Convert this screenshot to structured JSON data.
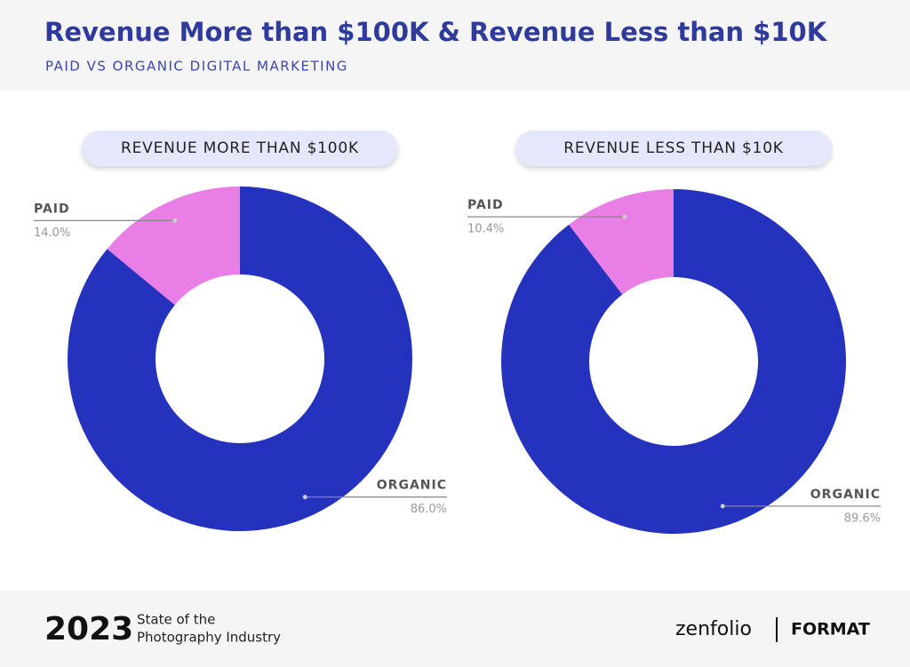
{
  "header": {
    "title": "Revenue More than $100K & Revenue Less than $10K",
    "subtitle": "PAID VS ORGANIC DIGITAL MARKETING"
  },
  "chart_data": [
    {
      "type": "donut",
      "title": "REVENUE MORE THAN $100K",
      "categories": [
        "PAID",
        "ORGANIC"
      ],
      "values": [
        14.0,
        86.0
      ],
      "value_labels": [
        "14.0%",
        "86.0%"
      ],
      "colors": [
        "#e87ee6",
        "#2432be"
      ]
    },
    {
      "type": "donut",
      "title": "REVENUE LESS THAN $10K",
      "categories": [
        "PAID",
        "ORGANIC"
      ],
      "values": [
        10.4,
        89.6
      ],
      "value_labels": [
        "10.4%",
        "89.6%"
      ],
      "colors": [
        "#e87ee6",
        "#2432be"
      ]
    }
  ],
  "footer": {
    "year": "2023",
    "line1": "State of the",
    "line2": "Photography Industry",
    "logo1": "zenfolio",
    "logo2": "FORMAT"
  }
}
